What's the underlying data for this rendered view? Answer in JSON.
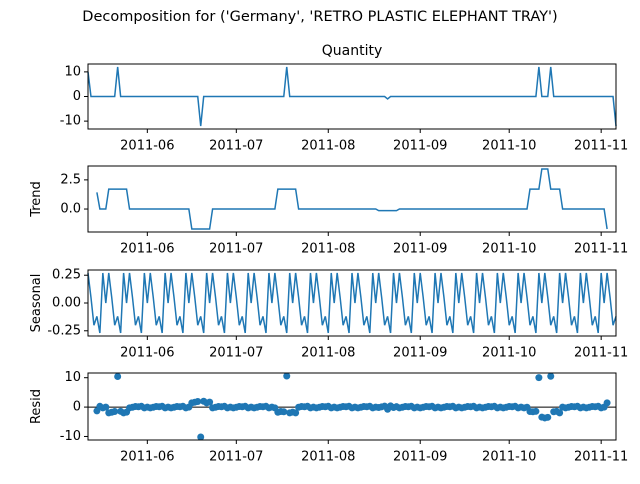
{
  "title": "Decomposition for ('Germany', 'RETRO PLASTIC ELEPHANT TRAY')",
  "chart_data": [
    {
      "type": "line",
      "title": "Quantity",
      "color": "#1f77b4",
      "xlim": [
        0,
        178
      ],
      "ylim": [
        -13.2,
        13.2
      ],
      "yticks": [
        10,
        0,
        -10
      ],
      "xticks": [
        {
          "value": 20,
          "label": "2011-06"
        },
        {
          "value": 50,
          "label": "2011-07"
        },
        {
          "value": 81,
          "label": "2011-08"
        },
        {
          "value": 112,
          "label": "2011-09"
        },
        {
          "value": 142,
          "label": "2011-10"
        },
        {
          "value": 173,
          "label": "2011-11"
        }
      ],
      "values": [
        10,
        0,
        0,
        0,
        0,
        0,
        0,
        0,
        0,
        0,
        12,
        0,
        0,
        0,
        0,
        0,
        0,
        0,
        0,
        0,
        0,
        0,
        0,
        0,
        0,
        0,
        0,
        0,
        0,
        0,
        0,
        0,
        0,
        0,
        0,
        0,
        0,
        0,
        -12,
        0,
        0,
        0,
        0,
        0,
        0,
        0,
        0,
        0,
        0,
        0,
        0,
        0,
        0,
        0,
        0,
        0,
        0,
        0,
        0,
        0,
        0,
        0,
        0,
        0,
        0,
        0,
        0,
        12,
        0,
        0,
        0,
        0,
        0,
        0,
        0,
        0,
        0,
        0,
        0,
        0,
        0,
        0,
        0,
        0,
        0,
        0,
        0,
        0,
        0,
        0,
        0,
        0,
        0,
        0,
        0,
        0,
        0,
        0,
        0,
        0,
        0,
        -1,
        0,
        0,
        0,
        0,
        0,
        0,
        0,
        0,
        0,
        0,
        0,
        0,
        0,
        0,
        0,
        0,
        0,
        0,
        0,
        0,
        0,
        0,
        0,
        0,
        0,
        0,
        0,
        0,
        0,
        0,
        0,
        0,
        0,
        0,
        0,
        0,
        0,
        0,
        0,
        0,
        0,
        0,
        0,
        0,
        0,
        0,
        0,
        0,
        0,
        0,
        12,
        0,
        0,
        0,
        12,
        0,
        0,
        0,
        0,
        0,
        0,
        0,
        0,
        0,
        0,
        0,
        0,
        0,
        0,
        0,
        0,
        0,
        0,
        0,
        0,
        0,
        -12
      ]
    },
    {
      "type": "line",
      "ylabel": "Trend",
      "color": "#1f77b4",
      "xlim": [
        0,
        178
      ],
      "ylim": [
        -1.97,
        3.69
      ],
      "yticks": [
        {
          "value": 2.5,
          "label": "2.5"
        },
        {
          "value": 0,
          "label": "0.0"
        }
      ],
      "xticks": [
        {
          "value": 20,
          "label": "2011-06"
        },
        {
          "value": 50,
          "label": "2011-07"
        },
        {
          "value": 81,
          "label": "2011-08"
        },
        {
          "value": 112,
          "label": "2011-09"
        },
        {
          "value": 142,
          "label": "2011-10"
        },
        {
          "value": 173,
          "label": "2011-11"
        }
      ],
      "values": [
        null,
        null,
        null,
        1.43,
        0,
        0,
        0,
        1.71,
        1.71,
        1.71,
        1.71,
        1.71,
        1.71,
        1.71,
        0,
        0,
        0,
        0,
        0,
        0,
        0,
        0,
        0,
        0,
        0,
        0,
        0,
        0,
        0,
        0,
        0,
        0,
        0,
        0,
        0,
        -1.71,
        -1.71,
        -1.71,
        -1.71,
        -1.71,
        -1.71,
        -1.71,
        0,
        0,
        0,
        0,
        0,
        0,
        0,
        0,
        0,
        0,
        0,
        0,
        0,
        0,
        0,
        0,
        0,
        0,
        0,
        0,
        0,
        0,
        1.71,
        1.71,
        1.71,
        1.71,
        1.71,
        1.71,
        1.71,
        0,
        0,
        0,
        0,
        0,
        0,
        0,
        0,
        0,
        0,
        0,
        0,
        0,
        0,
        0,
        0,
        0,
        0,
        0,
        0,
        0,
        0,
        0,
        0,
        0,
        0,
        0,
        -0.14,
        -0.14,
        -0.14,
        -0.14,
        -0.14,
        -0.14,
        -0.14,
        0,
        0,
        0,
        0,
        0,
        0,
        0,
        0,
        0,
        0,
        0,
        0,
        0,
        0,
        0,
        0,
        0,
        0,
        0,
        0,
        0,
        0,
        0,
        0,
        0,
        0,
        0,
        0,
        0,
        0,
        0,
        0,
        0,
        0,
        0,
        0,
        0,
        0,
        0,
        0,
        0,
        0,
        0,
        0,
        1.71,
        1.71,
        1.71,
        1.71,
        3.43,
        3.43,
        3.43,
        1.71,
        1.71,
        1.71,
        1.71,
        0,
        0,
        0,
        0,
        0,
        0,
        0,
        0,
        0,
        0,
        0,
        0,
        0,
        0,
        0,
        -1.71,
        null,
        null,
        null
      ]
    },
    {
      "type": "line",
      "ylabel": "Seasonal",
      "color": "#1f77b4",
      "xlim": [
        0,
        178
      ],
      "ylim": [
        -0.297,
        0.297
      ],
      "yticks": [
        {
          "value": 0.25,
          "label": "0.25"
        },
        {
          "value": 0,
          "label": "0.00"
        },
        {
          "value": -0.25,
          "label": "-0.25"
        }
      ],
      "xticks": [
        {
          "value": 20,
          "label": "2011-06"
        },
        {
          "value": 50,
          "label": "2011-07"
        },
        {
          "value": 81,
          "label": "2011-08"
        },
        {
          "value": 112,
          "label": "2011-09"
        },
        {
          "value": 142,
          "label": "2011-10"
        },
        {
          "value": 173,
          "label": "2011-11"
        }
      ],
      "values": [
        0.27,
        0.05,
        -0.2,
        -0.12,
        -0.27,
        0.27,
        0,
        0.27,
        0.05,
        -0.2,
        -0.12,
        -0.27,
        0.27,
        0,
        0.27,
        0.05,
        -0.2,
        -0.12,
        -0.27,
        0.27,
        0,
        0.27,
        0.05,
        -0.2,
        -0.12,
        -0.27,
        0.27,
        0,
        0.27,
        0.05,
        -0.2,
        -0.12,
        -0.27,
        0.27,
        0,
        0.27,
        0.05,
        -0.2,
        -0.12,
        -0.27,
        0.27,
        0,
        0.27,
        0.05,
        -0.2,
        -0.12,
        -0.27,
        0.27,
        0,
        0.27,
        0.05,
        -0.2,
        -0.12,
        -0.27,
        0.27,
        0,
        0.27,
        0.05,
        -0.2,
        -0.12,
        -0.27,
        0.27,
        0,
        0.27,
        0.05,
        -0.2,
        -0.12,
        -0.27,
        0.27,
        0,
        0.27,
        0.05,
        -0.2,
        -0.12,
        -0.27,
        0.27,
        0,
        0.27,
        0.05,
        -0.2,
        -0.12,
        -0.27,
        0.27,
        0,
        0.27,
        0.05,
        -0.2,
        -0.12,
        -0.27,
        0.27,
        0,
        0.27,
        0.05,
        -0.2,
        -0.12,
        -0.27,
        0.27,
        0,
        0.27,
        0.05,
        -0.2,
        -0.12,
        -0.27,
        0.27,
        0,
        0.27,
        0.05,
        -0.2,
        -0.12,
        -0.27,
        0.27,
        0,
        0.27,
        0.05,
        -0.2,
        -0.12,
        -0.27,
        0.27,
        0,
        0.27,
        0.05,
        -0.2,
        -0.12,
        -0.27,
        0.27,
        0,
        0.27,
        0.05,
        -0.2,
        -0.12,
        -0.27,
        0.27,
        0,
        0.27,
        0.05,
        -0.2,
        -0.12,
        -0.27,
        0.27,
        0,
        0.27,
        0.05,
        -0.2,
        -0.12,
        -0.27,
        0.27,
        0,
        0.27,
        0.05,
        -0.2,
        -0.12,
        -0.27,
        0.27,
        0,
        0.27,
        0.05,
        -0.2,
        -0.12,
        -0.27,
        0.27,
        0,
        0.27,
        0.05,
        -0.2,
        -0.12,
        -0.27,
        0.27,
        0,
        0.27,
        0.05,
        -0.2,
        -0.12,
        -0.27,
        0.27,
        0,
        0.27,
        0.05,
        -0.2,
        -0.12
      ]
    },
    {
      "type": "scatter",
      "ylabel": "Resid",
      "color": "#1f77b4",
      "xlim": [
        0,
        178
      ],
      "ylim": [
        -11.2,
        11.6
      ],
      "yticks": [
        10,
        0,
        -10
      ],
      "xticks": [
        {
          "value": 20,
          "label": "2011-06"
        },
        {
          "value": 50,
          "label": "2011-07"
        },
        {
          "value": 81,
          "label": "2011-08"
        },
        {
          "value": 112,
          "label": "2011-09"
        },
        {
          "value": 142,
          "label": "2011-10"
        },
        {
          "value": 173,
          "label": "2011-11"
        }
      ],
      "values": [
        null,
        null,
        null,
        -1.31,
        0.27,
        -0.27,
        0,
        -1.98,
        -1.76,
        -1.51,
        10.41,
        -1.44,
        -1.98,
        -1.71,
        -0.27,
        -0.05,
        0.2,
        0.12,
        0.27,
        -0.27,
        0,
        -0.27,
        -0.05,
        0.2,
        0.12,
        0.27,
        -0.27,
        0,
        -0.27,
        -0.05,
        0.2,
        0.12,
        0.27,
        -0.27,
        0,
        1.44,
        1.66,
        1.91,
        -10.17,
        1.98,
        1.44,
        1.71,
        -0.27,
        -0.05,
        0.2,
        0.12,
        0.27,
        -0.27,
        0,
        -0.27,
        -0.05,
        0.2,
        0.12,
        0.27,
        -0.27,
        0,
        -0.27,
        -0.05,
        0.2,
        0.12,
        0.27,
        -0.27,
        0,
        -0.27,
        -1.76,
        -1.51,
        -1.59,
        10.56,
        -1.98,
        -1.71,
        -1.98,
        -0.05,
        0.2,
        0.12,
        0.27,
        -0.27,
        0,
        -0.27,
        -0.05,
        0.2,
        0.12,
        0.27,
        -0.27,
        0,
        -0.27,
        -0.05,
        0.2,
        0.12,
        0.27,
        -0.27,
        0,
        -0.27,
        -0.05,
        0.2,
        0.12,
        0.27,
        -0.27,
        0,
        -0.13,
        0.09,
        0.34,
        -0.74,
        0.41,
        -0.13,
        0.14,
        -0.27,
        -0.05,
        0.2,
        0.12,
        0.27,
        -0.27,
        0,
        -0.27,
        -0.05,
        0.2,
        0.12,
        0.27,
        -0.27,
        0,
        -0.27,
        -0.05,
        0.2,
        0.12,
        0.27,
        -0.27,
        0,
        -0.27,
        -0.05,
        0.2,
        0.12,
        0.27,
        -0.27,
        0,
        -0.27,
        -0.05,
        0.2,
        0.12,
        0.27,
        -0.27,
        0,
        -0.27,
        -0.05,
        0.2,
        0.12,
        0.27,
        -0.27,
        0,
        -0.27,
        -0.05,
        -1.51,
        -1.59,
        -1.44,
        10.02,
        -3.43,
        -3.7,
        -3.48,
        10.49,
        -1.59,
        -1.44,
        -1.98,
        0,
        -0.27,
        -0.05,
        0.2,
        0.12,
        0.27,
        -0.27,
        0,
        -0.27,
        -0.05,
        0.2,
        0.12,
        0.27,
        -0.27,
        0,
        1.44,
        null,
        null,
        null
      ]
    }
  ]
}
